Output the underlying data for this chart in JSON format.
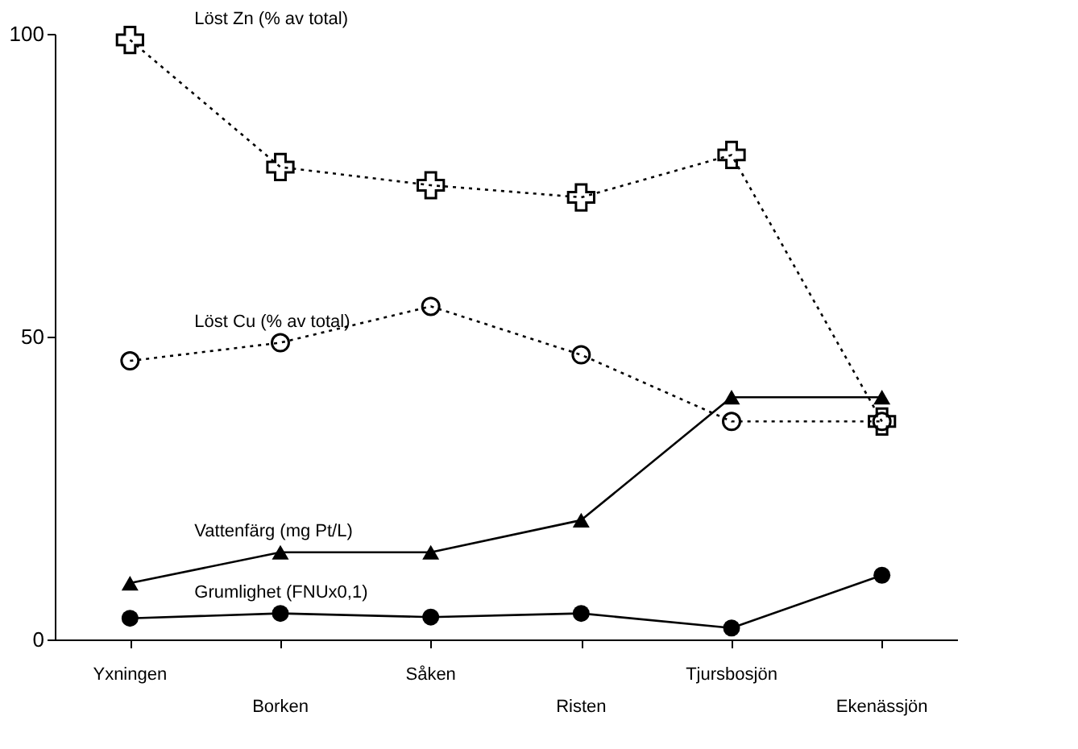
{
  "chart_data": {
    "type": "line",
    "categories": [
      "Yxningen",
      "Borken",
      "Såken",
      "Risten",
      "Tjursbosjön",
      "Ekenässjön"
    ],
    "ylim": [
      0,
      100
    ],
    "yticks": [
      0,
      50,
      100
    ],
    "grid": false,
    "series": [
      {
        "name": "Löst Zn (% av total)",
        "color": "#000000",
        "marker": "cross",
        "line_style": "dotted",
        "values": [
          99,
          78,
          75,
          73,
          80,
          36
        ]
      },
      {
        "name": "Löst Cu (% av total)",
        "color": "#000000",
        "marker": "circle",
        "line_style": "dotted",
        "values": [
          46,
          49,
          55,
          47,
          36,
          36
        ]
      },
      {
        "name": "Vattenfärg (mg Pt/L)",
        "color": "#000000",
        "marker": "triangle",
        "line_style": "solid",
        "values": [
          9.3,
          14.4,
          14.4,
          19.7,
          40,
          40
        ]
      },
      {
        "name": "Grumlighet (FNUx0,1)",
        "color": "#000000",
        "marker": "circle",
        "line_style": "solid",
        "values": [
          3.5,
          4.3,
          3.7,
          4.3,
          1.9,
          10.6
        ]
      }
    ]
  }
}
